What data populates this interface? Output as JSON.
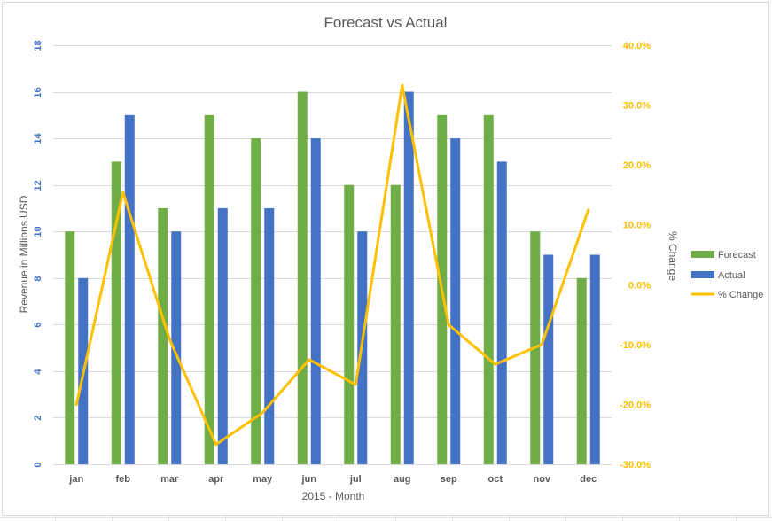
{
  "chart_data": {
    "type": "bar",
    "title": "Forecast vs Actual",
    "xlabel": "2015 - Month",
    "ylabel": "Revenue in Millions USD",
    "y2label": "% Change",
    "categories": [
      "jan",
      "feb",
      "mar",
      "apr",
      "may",
      "jun",
      "jul",
      "aug",
      "sep",
      "oct",
      "nov",
      "dec"
    ],
    "ylim": [
      0,
      18
    ],
    "yticks": [
      0,
      2,
      4,
      6,
      8,
      10,
      12,
      14,
      16,
      18
    ],
    "y2lim": [
      -0.3,
      0.4
    ],
    "y2ticks": [
      "-30.0%",
      "-20.0%",
      "-10.0%",
      "0.0%",
      "10.0%",
      "20.0%",
      "30.0%",
      "40.0%"
    ],
    "grid": true,
    "legend_position": "right",
    "series": [
      {
        "name": "Forecast",
        "type": "bar",
        "axis": "left",
        "color": "#70ad47",
        "values": [
          10,
          13,
          11,
          15,
          14,
          16,
          12,
          12,
          15,
          15,
          10,
          8
        ]
      },
      {
        "name": "Actual",
        "type": "bar",
        "axis": "left",
        "color": "#4472c4",
        "values": [
          8,
          15,
          10,
          11,
          11,
          14,
          10,
          16,
          14,
          13,
          9,
          9
        ]
      },
      {
        "name": "% Change",
        "type": "line",
        "axis": "right",
        "color": "#ffc000",
        "values": [
          -0.2,
          0.154,
          -0.091,
          -0.267,
          -0.214,
          -0.125,
          -0.167,
          0.333,
          -0.067,
          -0.133,
          -0.1,
          0.125
        ]
      }
    ],
    "colors": {
      "left_axis_text": "#4472c4",
      "right_axis_text": "#ffc000",
      "text": "#595959",
      "grid": "#d9d9d9"
    }
  }
}
